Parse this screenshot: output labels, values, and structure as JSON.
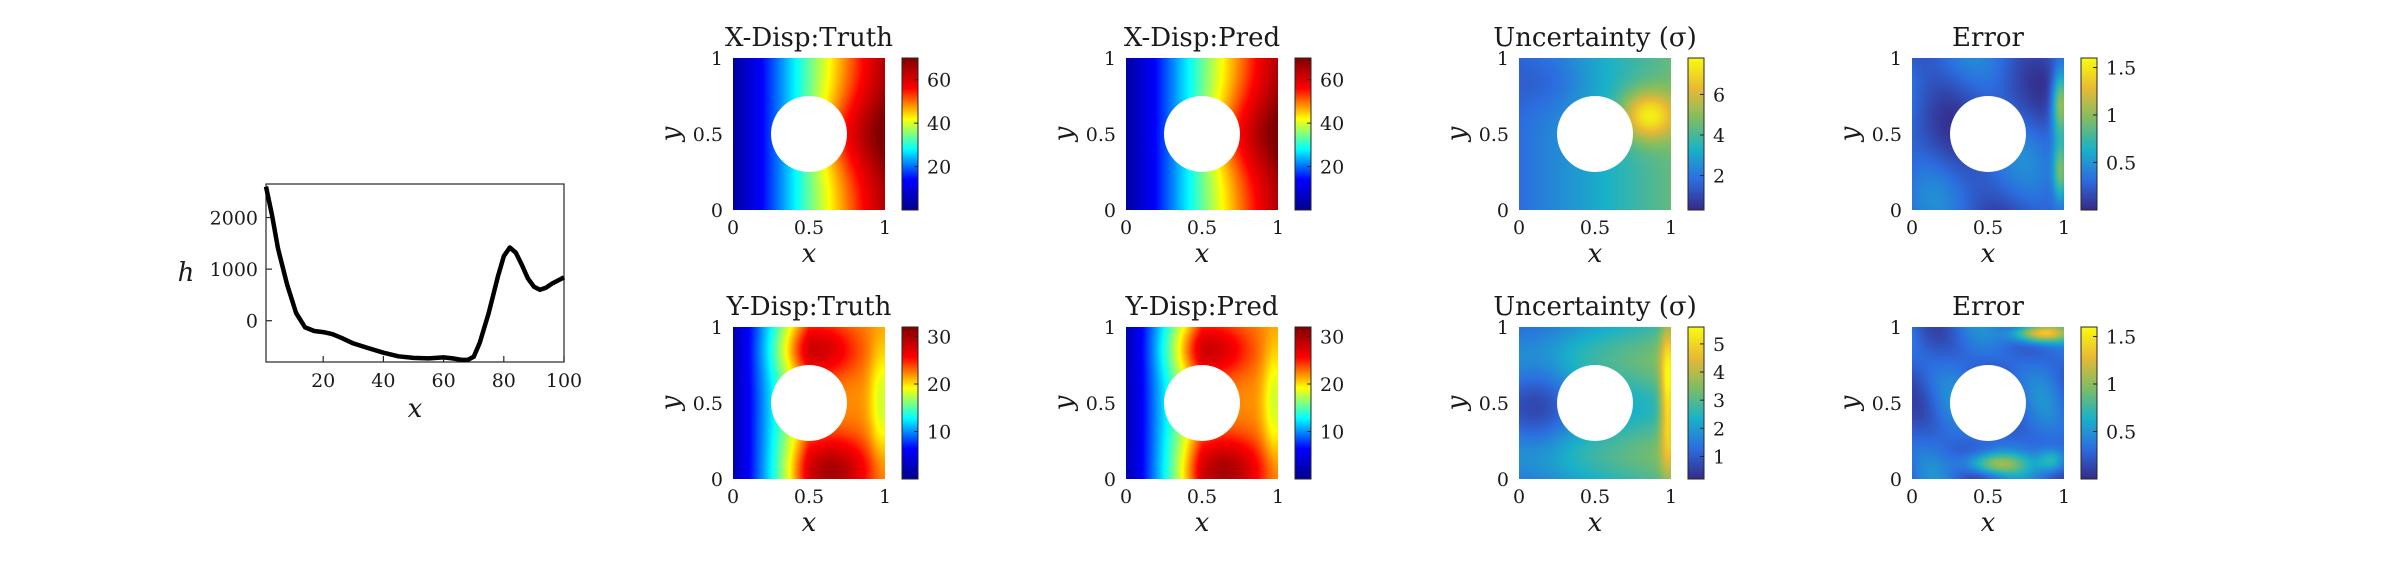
{
  "colors": {
    "line": "#000000",
    "hole": "#ffffff",
    "jet": [
      "#00008f",
      "#0000ff",
      "#00ffff",
      "#ffff00",
      "#ff0000",
      "#800000"
    ],
    "parula": [
      "#352a87",
      "#2c6de0",
      "#19b2c8",
      "#7fbd63",
      "#e8b934",
      "#f9fb0e"
    ]
  },
  "chart_data": [
    {
      "type": "line",
      "panel": "input-h",
      "xlabel": "x",
      "ylabel": "h",
      "xlim": [
        1,
        100
      ],
      "ylim": [
        -800,
        2650
      ],
      "xticks": [
        20,
        40,
        60,
        80,
        100
      ],
      "yticks": [
        0,
        1000,
        2000
      ],
      "grid": false,
      "series": [
        {
          "x": [
            1,
            3,
            5,
            8,
            11,
            14,
            17,
            20,
            23,
            26,
            30,
            35,
            40,
            45,
            50,
            55,
            60,
            63,
            66,
            68,
            70,
            72,
            75,
            78,
            80,
            82,
            84,
            86,
            88,
            90,
            92,
            94,
            96,
            98,
            100
          ],
          "y": [
            2600,
            2050,
            1400,
            700,
            150,
            -130,
            -200,
            -220,
            -260,
            -330,
            -440,
            -530,
            -620,
            -690,
            -720,
            -730,
            -710,
            -730,
            -760,
            -760,
            -700,
            -430,
            150,
            850,
            1250,
            1420,
            1320,
            1080,
            820,
            660,
            600,
            640,
            720,
            780,
            840
          ]
        }
      ]
    },
    {
      "type": "heatmap",
      "panel": "x-disp-truth",
      "title": "X-Disp:Truth",
      "xlabel": "x",
      "ylabel": "y",
      "xlim": [
        0,
        1
      ],
      "ylim": [
        0,
        1
      ],
      "xticks": [
        0,
        0.5,
        1
      ],
      "yticks": [
        0,
        0.5,
        1
      ],
      "colormap": "jet",
      "clim": [
        0,
        70
      ],
      "colorbar_ticks": [
        20,
        40,
        60
      ],
      "field": "xdisp",
      "hole": {
        "cx": 0.5,
        "cy": 0.5,
        "r": 0.25
      }
    },
    {
      "type": "heatmap",
      "panel": "x-disp-pred",
      "title": "X-Disp:Pred",
      "xlabel": "x",
      "ylabel": "y",
      "xlim": [
        0,
        1
      ],
      "ylim": [
        0,
        1
      ],
      "xticks": [
        0,
        0.5,
        1
      ],
      "yticks": [
        0,
        0.5,
        1
      ],
      "colormap": "jet",
      "clim": [
        0,
        70
      ],
      "colorbar_ticks": [
        20,
        40,
        60
      ],
      "field": "xdisp",
      "hole": {
        "cx": 0.5,
        "cy": 0.5,
        "r": 0.25
      }
    },
    {
      "type": "heatmap",
      "panel": "x-uncertainty",
      "title": "Uncertainty (σ)",
      "xlabel": "x",
      "ylabel": "y",
      "xlim": [
        0,
        1
      ],
      "ylim": [
        0,
        1
      ],
      "xticks": [
        0,
        0.5,
        1
      ],
      "yticks": [
        0,
        0.5,
        1
      ],
      "colormap": "parula",
      "clim": [
        0.3,
        7.8
      ],
      "colorbar_ticks": [
        2,
        4,
        6
      ],
      "field": "xunc",
      "hole": {
        "cx": 0.5,
        "cy": 0.5,
        "r": 0.25
      }
    },
    {
      "type": "heatmap",
      "panel": "x-error",
      "title": "Error",
      "xlabel": "x",
      "ylabel": "y",
      "xlim": [
        0,
        1
      ],
      "ylim": [
        0,
        1
      ],
      "xticks": [
        0,
        0.5,
        1
      ],
      "yticks": [
        0,
        0.5,
        1
      ],
      "colormap": "parula",
      "clim": [
        0,
        1.6
      ],
      "colorbar_ticks": [
        0.5,
        1,
        1.5
      ],
      "field": "xerr",
      "hole": {
        "cx": 0.5,
        "cy": 0.5,
        "r": 0.25
      }
    },
    {
      "type": "heatmap",
      "panel": "y-disp-truth",
      "title": "Y-Disp:Truth",
      "xlabel": "x",
      "ylabel": "y",
      "xlim": [
        0,
        1
      ],
      "ylim": [
        0,
        1
      ],
      "xticks": [
        0,
        0.5,
        1
      ],
      "yticks": [
        0,
        0.5,
        1
      ],
      "colormap": "jet",
      "clim": [
        0,
        32
      ],
      "colorbar_ticks": [
        10,
        20,
        30
      ],
      "field": "ydisp",
      "hole": {
        "cx": 0.5,
        "cy": 0.5,
        "r": 0.25
      }
    },
    {
      "type": "heatmap",
      "panel": "y-disp-pred",
      "title": "Y-Disp:Pred",
      "xlabel": "x",
      "ylabel": "y",
      "xlim": [
        0,
        1
      ],
      "ylim": [
        0,
        1
      ],
      "xticks": [
        0,
        0.5,
        1
      ],
      "yticks": [
        0,
        0.5,
        1
      ],
      "colormap": "jet",
      "clim": [
        0,
        32
      ],
      "colorbar_ticks": [
        10,
        20,
        30
      ],
      "field": "ydisp",
      "hole": {
        "cx": 0.5,
        "cy": 0.5,
        "r": 0.25
      }
    },
    {
      "type": "heatmap",
      "panel": "y-uncertainty",
      "title": "Uncertainty (σ)",
      "xlabel": "x",
      "ylabel": "y",
      "xlim": [
        0,
        1
      ],
      "ylim": [
        0,
        1
      ],
      "xticks": [
        0,
        0.5,
        1
      ],
      "yticks": [
        0,
        0.5,
        1
      ],
      "colormap": "parula",
      "clim": [
        0.2,
        5.6
      ],
      "colorbar_ticks": [
        1,
        2,
        3,
        4,
        5
      ],
      "field": "yunc",
      "hole": {
        "cx": 0.5,
        "cy": 0.5,
        "r": 0.25
      }
    },
    {
      "type": "heatmap",
      "panel": "y-error",
      "title": "Error",
      "xlabel": "x",
      "ylabel": "y",
      "xlim": [
        0,
        1
      ],
      "ylim": [
        0,
        1
      ],
      "xticks": [
        0,
        0.5,
        1
      ],
      "yticks": [
        0,
        0.5,
        1
      ],
      "colormap": "parula",
      "clim": [
        0,
        1.6
      ],
      "colorbar_ticks": [
        0.5,
        1,
        1.5
      ],
      "field": "yerr",
      "hole": {
        "cx": 0.5,
        "cy": 0.5,
        "r": 0.25
      }
    }
  ]
}
